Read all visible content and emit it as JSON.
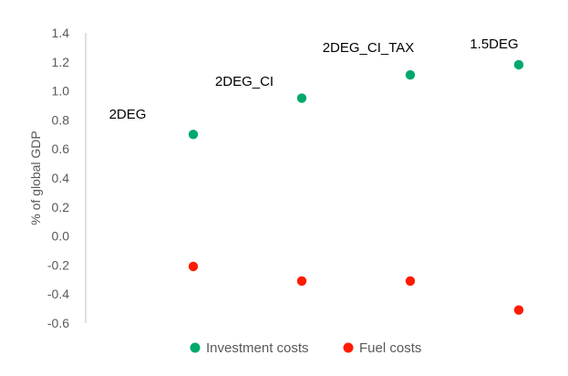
{
  "chart_data": {
    "type": "scatter",
    "title": "",
    "xlabel": "",
    "ylabel": "% of global GDP",
    "ylim": [
      -0.6,
      1.4
    ],
    "ytick_step": 0.2,
    "grid": false,
    "legend_position": "bottom",
    "categories": [
      "2DEG",
      "2DEG_CI",
      "2DEG_CI_TAX",
      "1.5DEG"
    ],
    "series": [
      {
        "name": "Investment costs",
        "color": "#00A86B",
        "values": [
          0.7,
          0.95,
          1.11,
          1.18
        ]
      },
      {
        "name": "Fuel costs",
        "color": "#FF1A00",
        "values": [
          -0.21,
          -0.31,
          -0.31,
          -0.51
        ]
      }
    ],
    "annotations": [
      "2DEG",
      "2DEG_CI",
      "2DEG_CI_TAX",
      "1.5DEG"
    ]
  }
}
